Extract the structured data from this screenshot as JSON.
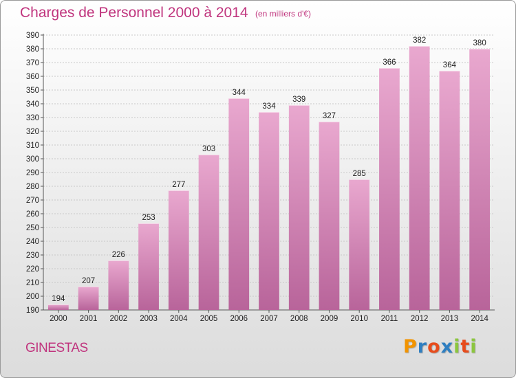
{
  "header": {
    "title": "Charges de Personnel 2000 à 2014",
    "subtitle": "(en milliers d'€)"
  },
  "footer": {
    "commune": "GINESTAS",
    "logo_letters": [
      "P",
      "r",
      "o",
      "x",
      "i",
      "t",
      "i"
    ],
    "logo_colors": [
      "#f29400",
      "#2f7fc1",
      "#e74c1c",
      "#2f7fc1",
      "#8cc63f",
      "#e74c1c",
      "#8cc63f"
    ]
  },
  "colors": {
    "title": "#c0357e",
    "bar_top": "#e9a8cf",
    "bar_bottom": "#b8649a"
  },
  "chart_data": {
    "type": "bar",
    "categories": [
      "2000",
      "2001",
      "2002",
      "2003",
      "2004",
      "2005",
      "2006",
      "2007",
      "2008",
      "2009",
      "2010",
      "2011",
      "2012",
      "2013",
      "2014"
    ],
    "values": [
      194,
      207,
      226,
      253,
      277,
      303,
      344,
      334,
      339,
      327,
      285,
      366,
      382,
      364,
      380
    ],
    "title": "Charges de Personnel 2000 à 2014",
    "xlabel": "",
    "ylabel": "",
    "ylim": [
      190,
      390
    ],
    "yticks": [
      190,
      200,
      210,
      220,
      230,
      240,
      250,
      260,
      270,
      280,
      290,
      300,
      310,
      320,
      330,
      340,
      350,
      360,
      370,
      380,
      390
    ],
    "grid": true,
    "legend": "none"
  }
}
